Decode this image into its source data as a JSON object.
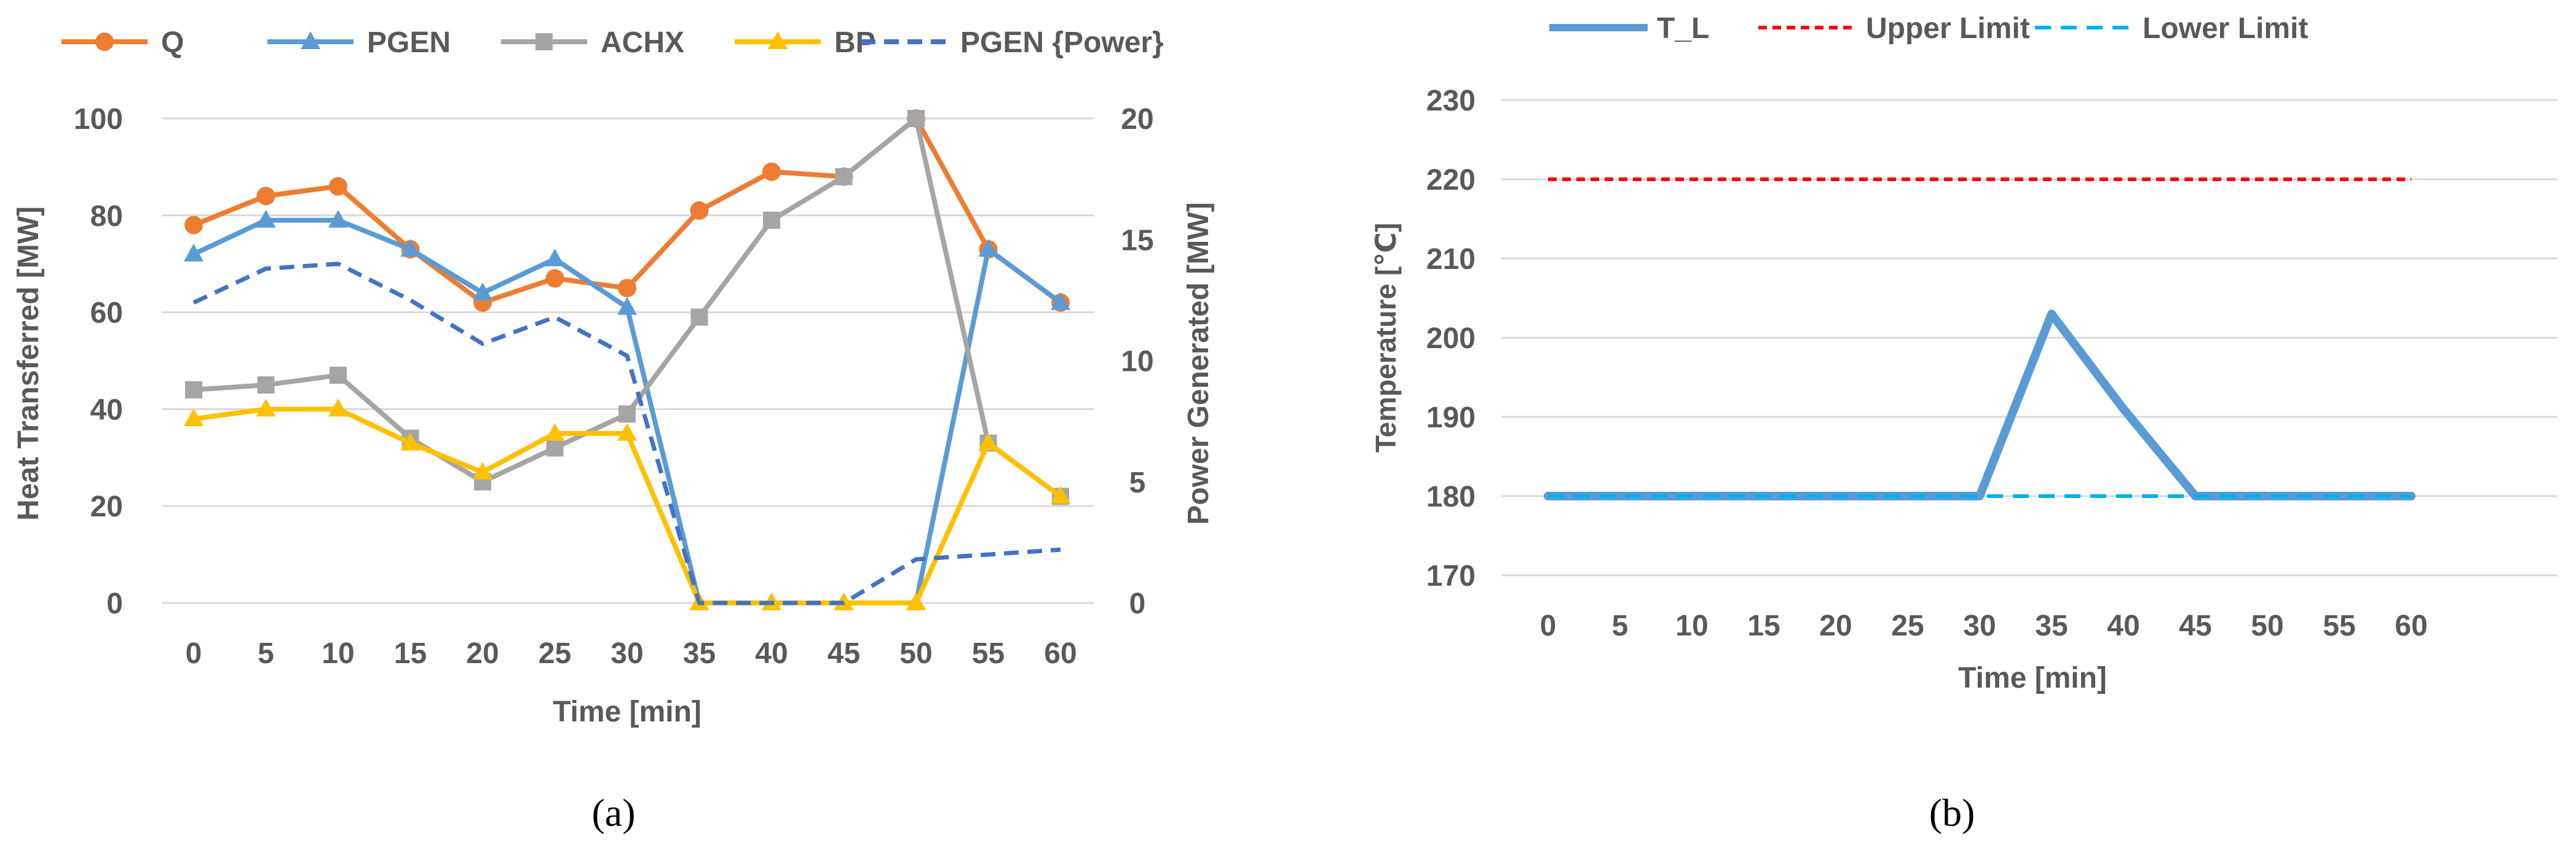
{
  "chart_data": [
    {
      "type": "line",
      "x": [
        0,
        5,
        10,
        15,
        20,
        25,
        30,
        35,
        40,
        45,
        50,
        55,
        60
      ],
      "xlabel": "Time [min]",
      "ylabel": "Heat Transferred [MW]",
      "y2label": "Power Generated [MW]",
      "ylim": [
        0,
        100
      ],
      "y2lim": [
        0,
        20
      ],
      "yticks": [
        0,
        20,
        40,
        60,
        80,
        100
      ],
      "y2ticks": [
        0,
        5,
        10,
        15,
        20
      ],
      "legend_position": "top",
      "caption": "(a)",
      "series": [
        {
          "name": "Q",
          "color": "#ED7D31",
          "marker": "circle",
          "axis": "left",
          "values": [
            78,
            84,
            86,
            73,
            62,
            67,
            65,
            81,
            89,
            88,
            100,
            73,
            62
          ]
        },
        {
          "name": "PGEN",
          "color": "#5B9BD5",
          "marker": "triangle",
          "axis": "left",
          "values": [
            72,
            79,
            79,
            73,
            64,
            71,
            61,
            0,
            0,
            0,
            0,
            73,
            62
          ]
        },
        {
          "name": "ACHX",
          "color": "#A5A5A5",
          "marker": "square",
          "axis": "left",
          "values": [
            44,
            45,
            47,
            34,
            25,
            32,
            39,
            59,
            79,
            88,
            100,
            33,
            22
          ]
        },
        {
          "name": "BP",
          "color": "#FFC000",
          "marker": "triangle",
          "axis": "left",
          "values": [
            38,
            40,
            40,
            33,
            27,
            35,
            35,
            0,
            0,
            0,
            0,
            33,
            22
          ]
        },
        {
          "name": "PGEN {Power}",
          "color": "#4472C4",
          "dash": true,
          "axis": "right",
          "values": [
            12.4,
            13.8,
            14.0,
            12.5,
            10.7,
            11.8,
            10.2,
            0,
            0,
            0,
            1.8,
            2.0,
            2.2
          ]
        }
      ]
    },
    {
      "type": "line",
      "x": [
        0,
        5,
        10,
        15,
        20,
        25,
        30,
        35,
        40,
        45,
        50,
        55,
        60
      ],
      "xlabel": "Time [min]",
      "ylabel": "Temperature [℃]",
      "ylim": [
        170,
        230
      ],
      "yticks": [
        170,
        180,
        190,
        200,
        210,
        220,
        230
      ],
      "legend_position": "top",
      "caption": "(b)",
      "series": [
        {
          "name": "T_L",
          "color": "#5B9BD5",
          "values": [
            180,
            180,
            180,
            180,
            180,
            180,
            180,
            203,
            191,
            180,
            180,
            180,
            180
          ]
        },
        {
          "name": "Upper Limit",
          "color": "#FF0000",
          "dash": true,
          "values": [
            220,
            220,
            220,
            220,
            220,
            220,
            220,
            220,
            220,
            220,
            220,
            220,
            220
          ]
        },
        {
          "name": "Lower Limit",
          "color": "#00B0F0",
          "dash": true,
          "values": [
            180,
            180,
            180,
            180,
            180,
            180,
            180,
            180,
            180,
            180,
            180,
            180,
            180
          ]
        }
      ]
    }
  ]
}
